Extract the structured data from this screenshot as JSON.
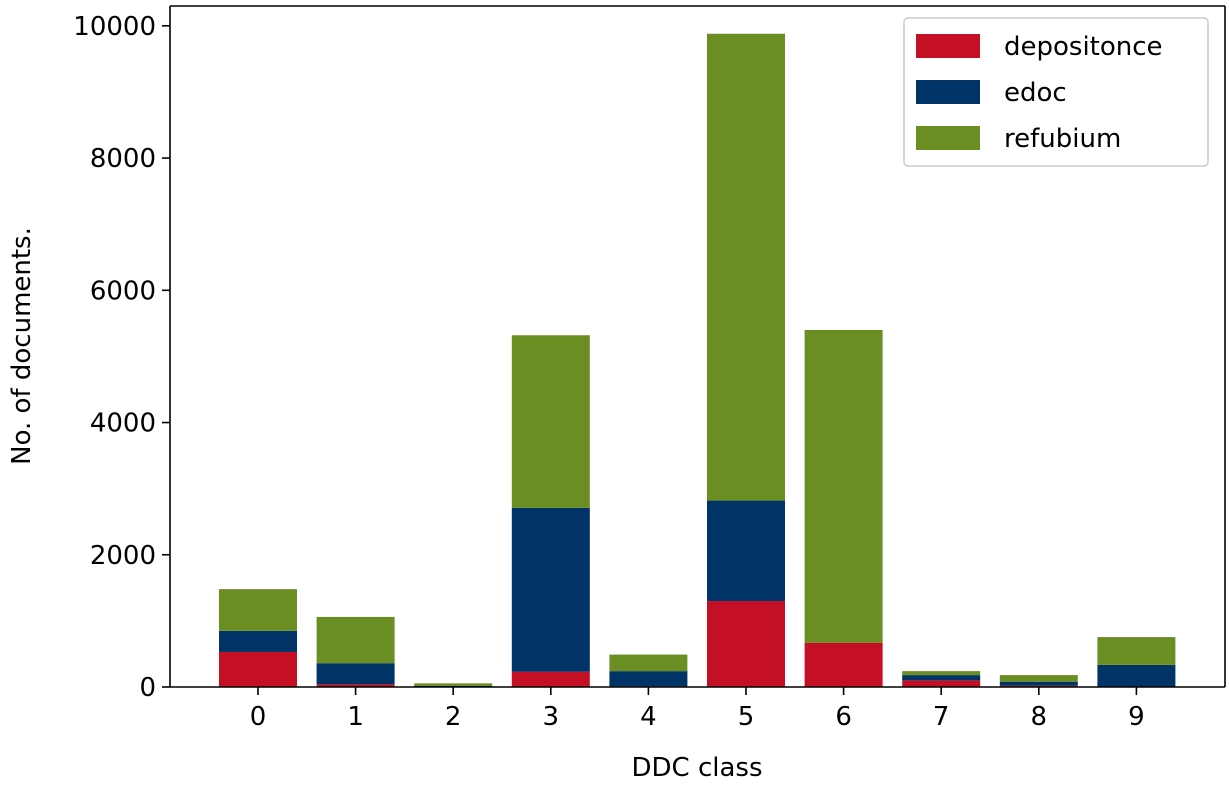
{
  "chart_data": {
    "type": "bar",
    "stacked": true,
    "title": "",
    "xlabel": "DDC class",
    "ylabel": "No. of documents.",
    "categories": [
      "0",
      "1",
      "2",
      "3",
      "4",
      "5",
      "6",
      "7",
      "8",
      "9"
    ],
    "ylim": [
      0,
      10300
    ],
    "yticks": [
      "0",
      "2000",
      "4000",
      "6000",
      "8000",
      "10000"
    ],
    "yticks_values": [
      0,
      2000,
      4000,
      6000,
      8000,
      10000
    ],
    "grid": false,
    "legend_position": "top-right",
    "series": [
      {
        "name": "depositonce",
        "color": "#c40f24",
        "values": [
          530,
          40,
          5,
          230,
          10,
          1300,
          670,
          100,
          20,
          5
        ]
      },
      {
        "name": "edoc",
        "color": "#003366",
        "values": [
          320,
          320,
          10,
          2480,
          230,
          1520,
          0,
          80,
          60,
          330
        ]
      },
      {
        "name": "refubium",
        "color": "#6b8e23",
        "values": [
          630,
          700,
          40,
          2610,
          250,
          7060,
          4730,
          60,
          100,
          420
        ]
      }
    ]
  }
}
